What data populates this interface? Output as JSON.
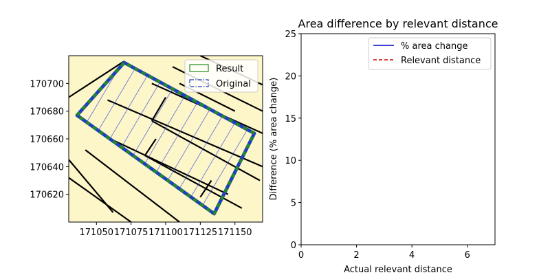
{
  "chart_data": [
    {
      "type": "map",
      "xlim": [
        171030,
        171170
      ],
      "ylim": [
        170600,
        170720
      ],
      "xticks": [
        171050,
        171075,
        171100,
        171125,
        171150
      ],
      "yticks": [
        170620,
        170640,
        170660,
        170680,
        170700
      ],
      "colors": {
        "parcel_fill": "#fdf6c9",
        "parcel_edge": "#000000",
        "result": "#228b22",
        "original": "#1f3fbf",
        "hatch": "#3344dd"
      },
      "legend": {
        "position": "top-right",
        "entries": [
          {
            "label": "Result",
            "color": "#228b22",
            "style": "solid"
          },
          {
            "label": "Original",
            "color": "#1f3fbf",
            "style": "dash-dot"
          }
        ]
      },
      "original_polygon": [
        [
          171036,
          170677
        ],
        [
          171070,
          170715
        ],
        [
          171164,
          170664
        ],
        [
          171135,
          170606
        ]
      ],
      "result_polygon": [
        [
          171036,
          170677
        ],
        [
          171070,
          170715
        ],
        [
          171164,
          170664
        ],
        [
          171135,
          170606
        ]
      ],
      "parcel_lines": [
        [
          [
            171030,
            170645
          ],
          [
            171062,
            170607
          ]
        ],
        [
          [
            171042,
            170652
          ],
          [
            171110,
            170600
          ]
        ],
        [
          [
            171058,
            170688
          ],
          [
            171170,
            170640
          ]
        ],
        [
          [
            171090,
            170673
          ],
          [
            171168,
            170630
          ]
        ],
        [
          [
            171030,
            170632
          ],
          [
            171075,
            170600
          ]
        ],
        [
          [
            171090,
            170700
          ],
          [
            171170,
            170664
          ]
        ],
        [
          [
            171105,
            170712
          ],
          [
            171170,
            170680
          ]
        ],
        [
          [
            171125,
            170720
          ],
          [
            171170,
            170699
          ]
        ],
        [
          [
            171030,
            170690
          ],
          [
            171070,
            170716
          ]
        ],
        [
          [
            171085,
            170648
          ],
          [
            171155,
            170610
          ]
        ],
        [
          [
            171060,
            170660
          ],
          [
            171145,
            170620
          ]
        ],
        [
          [
            171090,
            170673
          ],
          [
            171100,
            170690
          ]
        ],
        [
          [
            171085,
            170648
          ],
          [
            171093,
            170660
          ]
        ],
        [
          [
            171125,
            170618
          ],
          [
            171133,
            170630
          ]
        ],
        [
          [
            171110,
            170700
          ],
          [
            171150,
            170680
          ]
        ]
      ]
    },
    {
      "type": "line",
      "title": "Area difference by relevant distance",
      "xlabel": "Actual relevant distance",
      "ylabel": "Difference (% area change)",
      "xlim": [
        0,
        7
      ],
      "ylim": [
        0,
        25
      ],
      "xticks": [
        0,
        2,
        4,
        6
      ],
      "yticks": [
        0,
        5,
        10,
        15,
        20,
        25
      ],
      "legend": {
        "position": "top-right",
        "entries": [
          {
            "label": "% area change",
            "color": "#0000cc",
            "style": "solid"
          },
          {
            "label": "Relevant distance",
            "color": "#cc0000",
            "style": "dashed"
          }
        ]
      },
      "series": []
    }
  ]
}
